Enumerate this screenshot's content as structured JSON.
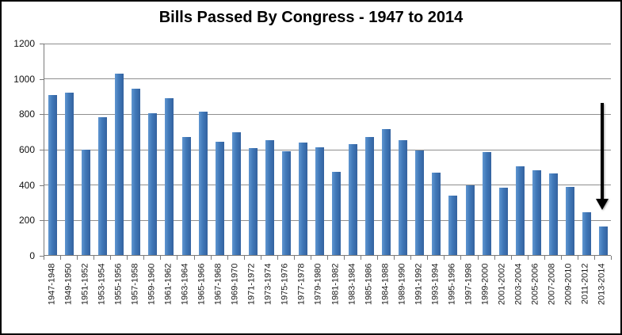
{
  "chart_data": {
    "type": "bar",
    "title": "Bills Passed By Congress - 1947 to 2014",
    "xlabel": "",
    "ylabel": "",
    "categories": [
      "1947-1948",
      "1949-1950",
      "1951-1952",
      "1953-1954",
      "1955-1956",
      "1957-1958",
      "1959-1960",
      "1961-1962",
      "1963-1964",
      "1965-1966",
      "1967-1968",
      "1969-1970",
      "1971-1972",
      "1973-1974",
      "1975-1976",
      "1977-1978",
      "1979-1980",
      "1981-1982",
      "1983-1984",
      "1985-1986",
      "1984-1988",
      "1989-1990",
      "1991-1992",
      "1993-1994",
      "1995-1996",
      "1997-1998",
      "1999-2000",
      "2001-2002",
      "2003-2004",
      "2005-2006",
      "2007-2008",
      "2009-2010",
      "2011-2012",
      "2013-2014"
    ],
    "values": [
      905,
      920,
      595,
      780,
      1025,
      940,
      800,
      885,
      665,
      810,
      640,
      695,
      605,
      650,
      585,
      635,
      610,
      470,
      625,
      665,
      710,
      650,
      590,
      465,
      335,
      395,
      580,
      380,
      500,
      480,
      460,
      385,
      240,
      160
    ],
    "ylim": [
      0,
      1200
    ],
    "yticks": [
      "1200",
      "1000",
      "800",
      "600",
      "400",
      "200",
      "0"
    ],
    "grid": true,
    "legend": false,
    "bar_color": "#3F73B3",
    "gridline_color": "#8E8E8E",
    "annotation": {
      "type": "down-arrow",
      "color": "#000000",
      "target_category": "2013-2014"
    }
  }
}
